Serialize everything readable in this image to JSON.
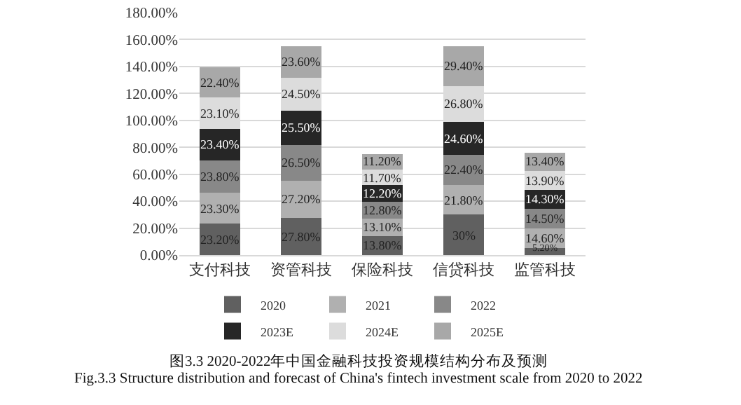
{
  "chart_data": {
    "type": "bar",
    "stacked": true,
    "categories": [
      "支付科技",
      "资管科技",
      "保险科技",
      "信贷科技",
      "监管科技"
    ],
    "series": [
      {
        "name": "2020",
        "color": "#606060",
        "values": [
          23.2,
          27.8,
          13.8,
          30,
          5.2
        ],
        "value_labels": [
          "23.20%",
          "27.80%",
          "13.80%",
          "30%",
          "5.20%"
        ]
      },
      {
        "name": "2021",
        "color": "#b0b0b0",
        "values": [
          23.3,
          27.2,
          13.1,
          21.8,
          14.6
        ],
        "value_labels": [
          "23.30%",
          "27.20%",
          "13.10%",
          "21.80%",
          "14.60%"
        ]
      },
      {
        "name": "2022",
        "color": "#888888",
        "values": [
          23.8,
          26.5,
          12.8,
          22.4,
          14.5
        ],
        "value_labels": [
          "23.80%",
          "26.50%",
          "12.80%",
          "22.40%",
          "14.50%"
        ]
      },
      {
        "name": "2023E",
        "color": "#262626",
        "values": [
          23.4,
          25.5,
          12.2,
          24.6,
          14.3
        ],
        "value_labels": [
          "23.40%",
          "25.50%",
          "12.20%",
          "24.60%",
          "14.30%"
        ]
      },
      {
        "name": "2024E",
        "color": "#dcdcdc",
        "values": [
          23.1,
          24.5,
          11.7,
          26.8,
          13.9
        ],
        "value_labels": [
          "23.10%",
          "24.50%",
          "11.70%",
          "26.80%",
          "13.90%"
        ]
      },
      {
        "name": "2025E",
        "color": "#a8a8a8",
        "values": [
          22.4,
          23.6,
          11.2,
          29.4,
          13.4
        ],
        "value_labels": [
          "22.40%",
          "23.60%",
          "11.20%",
          "29.40%",
          "13.40%"
        ]
      }
    ],
    "ylim": [
      0,
      180
    ],
    "yticks": [
      {
        "value": 0,
        "label": "0.00%"
      },
      {
        "value": 20,
        "label": "20.00%"
      },
      {
        "value": 40,
        "label": "40.00%"
      },
      {
        "value": 60,
        "label": "60.00%"
      },
      {
        "value": 80,
        "label": "80.00%"
      },
      {
        "value": 100,
        "label": "100.00%"
      },
      {
        "value": 120,
        "label": "120.00%"
      },
      {
        "value": 140,
        "label": "140.00%"
      },
      {
        "value": 160,
        "label": "160.00%"
      },
      {
        "value": 180,
        "label": "180.00%"
      }
    ],
    "grid": "y",
    "legend": "bottom",
    "annotations": [
      "图3.3 2020-2022年中国金融科技投资规模结构分布及预测",
      "Fig.3.3 Structure distribution and forecast of China's fintech investment scale from 2020 to 2022"
    ]
  }
}
